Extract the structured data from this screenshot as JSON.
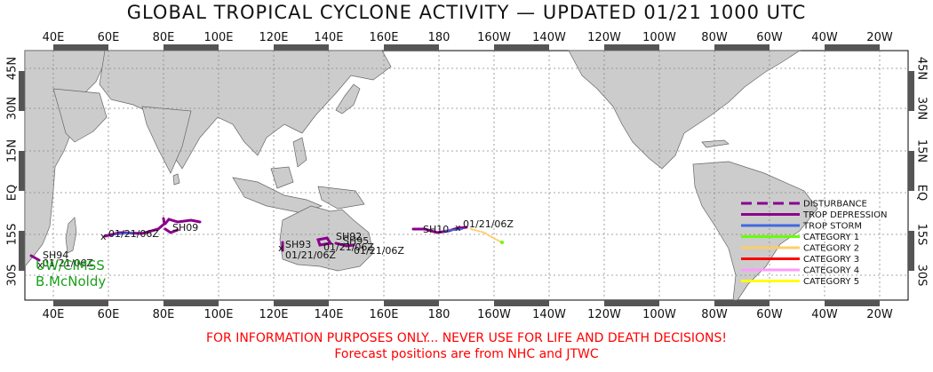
{
  "title": "GLOBAL TROPICAL CYCLONE ACTIVITY — UPDATED 01/21 1000 UTC",
  "axes": {
    "lon_labels": [
      "40E",
      "60E",
      "80E",
      "100E",
      "120E",
      "140E",
      "160E",
      "180",
      "160W",
      "140W",
      "120W",
      "100W",
      "80W",
      "60W",
      "40W",
      "20W"
    ],
    "lat_labels": [
      "45N",
      "30N",
      "15N",
      "EQ",
      "15S",
      "30S"
    ]
  },
  "legend": {
    "items": [
      {
        "label": "DISTURBANCE",
        "color": "#8b008b",
        "style": "dashed"
      },
      {
        "label": "TROP DEPRESSION",
        "color": "#8b008b",
        "style": "solid"
      },
      {
        "label": "TROP STORM",
        "color": "#4169e1",
        "style": "solid"
      },
      {
        "label": "CATEGORY 1",
        "color": "#66ff00",
        "style": "solid"
      },
      {
        "label": "CATEGORY 2",
        "color": "#ffcc66",
        "style": "solid"
      },
      {
        "label": "CATEGORY 3",
        "color": "#ff0000",
        "style": "solid"
      },
      {
        "label": "CATEGORY 4",
        "color": "#ff99ff",
        "style": "solid"
      },
      {
        "label": "CATEGORY 5",
        "color": "#ffff00",
        "style": "solid"
      }
    ]
  },
  "storms": [
    {
      "id": "SH94",
      "date": "01/21/06Z",
      "lon": 33,
      "lat": -24,
      "color": "#8b008b"
    },
    {
      "id": "",
      "date": "01/21/06Z",
      "lon": 58,
      "lat": -15,
      "color": "#8b008b"
    },
    {
      "id": "SH09",
      "date": "",
      "lon": 83,
      "lat": -11,
      "color": "#8b008b"
    },
    {
      "id": "SH93",
      "date": "01/21/06Z",
      "lon": 121,
      "lat": -20,
      "color": "#8b008b"
    },
    {
      "id": "SH92",
      "date": "01/21/06Z",
      "lon": 139,
      "lat": -16,
      "color": "#8b008b"
    },
    {
      "id": "SH95",
      "date": "01/21/06Z",
      "lon": 145,
      "lat": -19,
      "color": "#8b008b"
    },
    {
      "id": "SH10",
      "date": "01/21/06Z",
      "lon": 185,
      "lat": -13,
      "color": "#8b008b"
    }
  ],
  "footer": {
    "line1": "FOR INFORMATION PURPOSES ONLY... NEVER USE FOR LIFE AND DEATH DECISIONS!",
    "line2": "Forecast positions are from NHC and JTWC"
  },
  "credit": {
    "line1": "UW/CIMSS",
    "line2": "B.McNoldy"
  },
  "colors": {
    "land": "#cccccc",
    "ocean": "#ffffff",
    "frame_bar": "#555555",
    "footer_text": "#ff0000",
    "credit_text": "#1aa01a"
  }
}
